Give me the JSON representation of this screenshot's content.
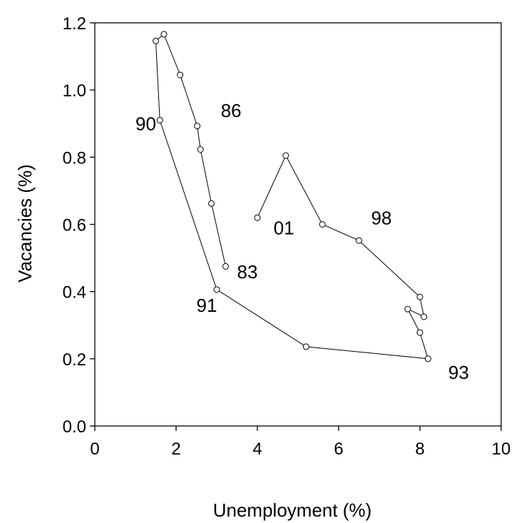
{
  "chart_data": {
    "type": "line",
    "xlabel": "Unemployment (%)",
    "ylabel": "Vacancies (%)",
    "xlim": [
      0,
      10
    ],
    "ylim": [
      0.0,
      1.2
    ],
    "xticks": [
      0,
      2,
      4,
      6,
      8,
      10
    ],
    "xtick_labels": [
      "0",
      "2",
      "4",
      "6",
      "8",
      "10"
    ],
    "yticks": [
      0.0,
      0.2,
      0.4,
      0.6,
      0.8,
      1.0,
      1.2
    ],
    "ytick_labels": [
      "0.0",
      "0.2",
      "0.4",
      "0.6",
      "0.8",
      "1.0",
      "1.2"
    ],
    "grid": false,
    "legend": "none",
    "line_color": "#000000",
    "marker": "open-circle",
    "series": [
      {
        "x": [
          3.22,
          2.87,
          2.6,
          2.52,
          2.1,
          1.7,
          1.5,
          1.6,
          3.0,
          5.2,
          8.2,
          8.0,
          7.7,
          8.1,
          8.0,
          6.5,
          5.6,
          4.7,
          4.0
        ],
        "y": [
          0.475,
          0.662,
          0.823,
          0.893,
          1.045,
          1.166,
          1.146,
          0.91,
          0.406,
          0.236,
          0.2,
          0.278,
          0.348,
          0.325,
          0.384,
          0.552,
          0.6,
          0.805,
          0.62
        ]
      }
    ],
    "annotations": [
      {
        "text": "83",
        "x": 3.5,
        "y": 0.44
      },
      {
        "text": "86",
        "x": 3.1,
        "y": 0.92
      },
      {
        "text": "90",
        "x": 1.0,
        "y": 0.88
      },
      {
        "text": "91",
        "x": 2.5,
        "y": 0.34
      },
      {
        "text": "93",
        "x": 8.7,
        "y": 0.14
      },
      {
        "text": "98",
        "x": 6.8,
        "y": 0.6
      },
      {
        "text": "01",
        "x": 4.4,
        "y": 0.57
      }
    ]
  }
}
